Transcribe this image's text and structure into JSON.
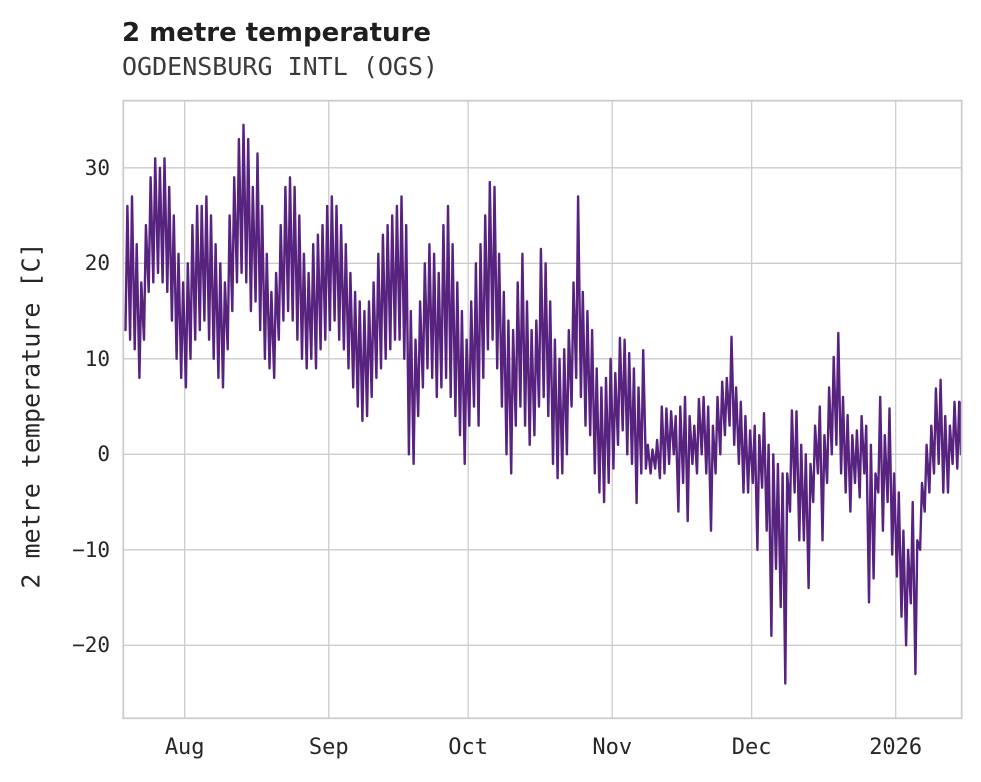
{
  "chart_data": {
    "type": "line",
    "title": "2 metre temperature",
    "subtitle": "OGDENSBURG INTL (OGS)",
    "ylabel": "2 metre temperature [C]",
    "x_tick_labels": [
      "Aug",
      "Sep",
      "Oct",
      "Nov",
      "Dec",
      "2026"
    ],
    "x_tick_day_offsets_from_aug1": [
      0,
      31,
      61,
      92,
      122,
      153
    ],
    "y_tick_labels": [
      "30",
      "20",
      "10",
      "0",
      "−10",
      "−20"
    ],
    "y_ticks": [
      30,
      20,
      10,
      0,
      -10,
      -20
    ],
    "ylim": [
      -27.6,
      37.0
    ],
    "x_range_estimate": [
      "2025-07-19",
      "2026-01-15"
    ],
    "grid": true,
    "legend": "none",
    "line_color": "#57237f",
    "grid_color": "#cccccc",
    "series": [
      {
        "name": "2 metre temperature",
        "sampling": "daily min/max envelope estimated from hourly curve",
        "start_date": "2025-07-19",
        "month_day_counts": {
          "Jul": 13,
          "Aug": 31,
          "Sep": 30,
          "Oct": 31,
          "Nov": 30,
          "Dec": 31,
          "Jan": 15
        },
        "daily_min": [
          13,
          12,
          11,
          8,
          12,
          17,
          18,
          19,
          18,
          17,
          14,
          10,
          8,
          7,
          10,
          12,
          13,
          14,
          12,
          10,
          8,
          7,
          11,
          15,
          18,
          19,
          18,
          15,
          16,
          13,
          10,
          9,
          8,
          12,
          14,
          15,
          14,
          12,
          10,
          9,
          10,
          9,
          11,
          12,
          13,
          14,
          12,
          11,
          9,
          7,
          5,
          3.5,
          4,
          6,
          8,
          9,
          10,
          11,
          12,
          12,
          10,
          0,
          -1,
          4,
          7,
          9,
          8,
          6,
          7,
          8,
          6,
          4,
          2,
          -1,
          3,
          5,
          3,
          8,
          11,
          12,
          9,
          5,
          0,
          -2,
          3,
          5,
          3,
          1,
          2,
          5,
          6,
          4,
          -1,
          -2.5,
          -2,
          0,
          5,
          8,
          6,
          3,
          2,
          -2,
          -4,
          -5,
          -3,
          -1.5,
          1,
          2.5,
          0,
          -1,
          -5.1,
          -2,
          -1.5,
          -2,
          -1.5,
          -2.5,
          -2,
          -1,
          0,
          -6,
          -3,
          -7,
          -1,
          -2,
          0,
          -2,
          -8,
          -2,
          0,
          2,
          3,
          1,
          -1,
          -4,
          -4,
          -3,
          -10,
          -3.5,
          -8,
          -19,
          -12,
          -16,
          -24,
          -6,
          -4,
          -9,
          -9,
          -14,
          -5,
          -2,
          -9,
          -3,
          0,
          1,
          -2,
          -4,
          -6,
          -3,
          -4.5,
          -2,
          -15.5,
          -13,
          -4,
          -8,
          -5,
          -10.5,
          -12.8,
          -17,
          -20,
          -15.6,
          -23,
          -10,
          -6,
          -4,
          -2,
          -1,
          -4,
          -4,
          -1,
          -1.5,
          0
        ],
        "daily_max": [
          26,
          27,
          22,
          18,
          24,
          29,
          31,
          30,
          31,
          28,
          25,
          21,
          18,
          20,
          24,
          26,
          26,
          27,
          25,
          22,
          20,
          18,
          25,
          29,
          33,
          34.5,
          33,
          28,
          31.5,
          26,
          21,
          17,
          19,
          24,
          28,
          29,
          28,
          25,
          21,
          19,
          22,
          23,
          24,
          26,
          27,
          26,
          24,
          22,
          19,
          17,
          16,
          15,
          16,
          18,
          21,
          23,
          24,
          25,
          26,
          27,
          24,
          15,
          12,
          16,
          20,
          22,
          21,
          19,
          24,
          26,
          22,
          18,
          15,
          12,
          16,
          20,
          22,
          25,
          28.5,
          28,
          21,
          17,
          14,
          13,
          18,
          21,
          16,
          13,
          14,
          21.5,
          20,
          16,
          12,
          10,
          11,
          13,
          18,
          27,
          17,
          15,
          13,
          9,
          7,
          8,
          10,
          8.5,
          12.2,
          12,
          10.6,
          9,
          7,
          10.9,
          1,
          0.5,
          1.5,
          5,
          4.8,
          4.5,
          4,
          5,
          6,
          4,
          3,
          5.8,
          6,
          5,
          3,
          6,
          7.6,
          8,
          12.3,
          7,
          5.5,
          4,
          2.5,
          3,
          2,
          4.3,
          1,
          0,
          -1,
          -2,
          -2,
          4.6,
          4.5,
          1,
          0,
          -1,
          3,
          5,
          2,
          7,
          10.2,
          12.7,
          6,
          4.1,
          2,
          2.5,
          4,
          3,
          1,
          -2,
          6,
          2,
          4.8,
          -2,
          -4,
          -8,
          -10,
          -5,
          -9,
          -3,
          1,
          3,
          6.9,
          7.8,
          4,
          3,
          5.5,
          5.5,
          5.4
        ]
      }
    ]
  }
}
